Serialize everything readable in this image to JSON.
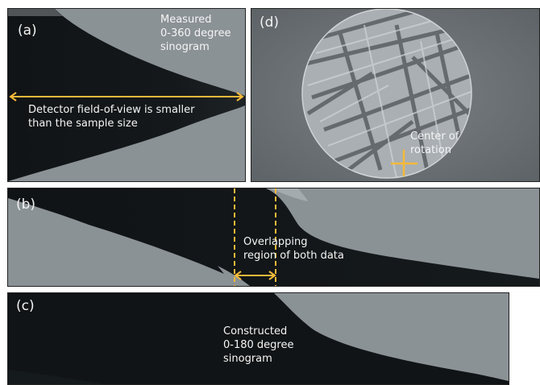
{
  "figure": {
    "colors": {
      "sample_dark": "#0f1214",
      "background_gray": "#8a9196",
      "annotation_yellow": "#f5b93a",
      "label_text": "#f5f5f5"
    },
    "panel_a": {
      "label": "(a)",
      "title_lines": [
        "Measured",
        "0-360 degree",
        "sinogram"
      ],
      "arrow_text_lines": [
        "Detector field-of-view is smaller",
        "than the sample size"
      ]
    },
    "panel_b": {
      "label": "(b)",
      "overlap_text_lines": [
        "Overlapping",
        "region of both data"
      ]
    },
    "panel_c": {
      "label": "(c)",
      "title_lines": [
        "Constructed",
        "0-180 degree",
        "sinogram"
      ]
    },
    "panel_d": {
      "label": "(d)",
      "center_text_lines": [
        "Center of",
        "rotation"
      ],
      "center_marker_icon": "plus-cross-icon"
    }
  }
}
